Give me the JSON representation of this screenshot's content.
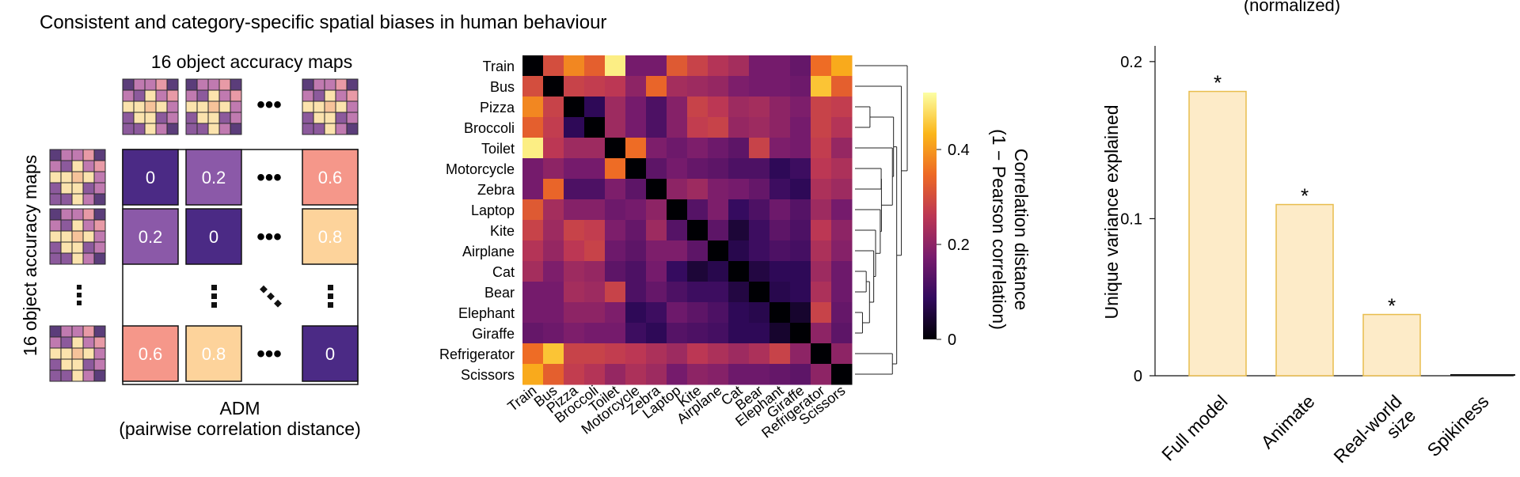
{
  "figure": {
    "title": "Consistent and category-specific spatial biases in human behaviour",
    "top_right_fragment": "(normalized)"
  },
  "panel_a": {
    "top_label": "16 object accuracy maps",
    "left_label": "16 object accuracy maps",
    "xlabel_line1": "ADM",
    "xlabel_line2": "(pairwise correlation distance)",
    "cells": [
      {
        "row": 0,
        "col": 0,
        "label": "0",
        "color": "#4b2a85"
      },
      {
        "row": 0,
        "col": 1,
        "label": "0.2",
        "color": "#8b59a8"
      },
      {
        "row": 0,
        "col": 3,
        "label": "0.6",
        "color": "#f5978a"
      },
      {
        "row": 1,
        "col": 0,
        "label": "0.2",
        "color": "#8b59a8"
      },
      {
        "row": 1,
        "col": 1,
        "label": "0",
        "color": "#4b2a85"
      },
      {
        "row": 1,
        "col": 3,
        "label": "0.8",
        "color": "#fdd39b"
      },
      {
        "row": 3,
        "col": 0,
        "label": "0.6",
        "color": "#f5978a"
      },
      {
        "row": 3,
        "col": 1,
        "label": "0.8",
        "color": "#fdd39b"
      },
      {
        "row": 3,
        "col": 3,
        "label": "0",
        "color": "#4b2a85"
      }
    ]
  },
  "chart_data": [
    {
      "type": "heatmap",
      "title": "",
      "categories": [
        "Train",
        "Bus",
        "Pizza",
        "Broccoli",
        "Toilet",
        "Motorcycle",
        "Zebra",
        "Laptop",
        "Kite",
        "Airplane",
        "Cat",
        "Bear",
        "Elephant",
        "Giraffe",
        "Refrigerator",
        "Scissors"
      ],
      "values": [
        [
          0.0,
          0.3,
          0.38,
          0.33,
          0.5,
          0.17,
          0.17,
          0.32,
          0.28,
          0.25,
          0.23,
          0.17,
          0.17,
          0.15,
          0.35,
          0.42
        ],
        [
          0.3,
          0.0,
          0.28,
          0.27,
          0.26,
          0.2,
          0.34,
          0.23,
          0.22,
          0.21,
          0.18,
          0.17,
          0.17,
          0.16,
          0.45,
          0.33
        ],
        [
          0.38,
          0.28,
          0.0,
          0.08,
          0.22,
          0.17,
          0.12,
          0.19,
          0.28,
          0.26,
          0.22,
          0.23,
          0.2,
          0.18,
          0.28,
          0.27
        ],
        [
          0.33,
          0.27,
          0.08,
          0.0,
          0.22,
          0.17,
          0.12,
          0.19,
          0.27,
          0.28,
          0.21,
          0.22,
          0.2,
          0.17,
          0.28,
          0.25
        ],
        [
          0.5,
          0.26,
          0.22,
          0.22,
          0.0,
          0.35,
          0.18,
          0.16,
          0.18,
          0.16,
          0.14,
          0.28,
          0.18,
          0.17,
          0.27,
          0.21
        ],
        [
          0.17,
          0.2,
          0.17,
          0.17,
          0.35,
          0.0,
          0.14,
          0.17,
          0.15,
          0.14,
          0.12,
          0.12,
          0.08,
          0.1,
          0.26,
          0.24
        ],
        [
          0.17,
          0.34,
          0.12,
          0.12,
          0.18,
          0.14,
          0.0,
          0.2,
          0.22,
          0.18,
          0.17,
          0.15,
          0.1,
          0.08,
          0.24,
          0.22
        ],
        [
          0.32,
          0.23,
          0.19,
          0.19,
          0.16,
          0.17,
          0.2,
          0.0,
          0.13,
          0.18,
          0.09,
          0.12,
          0.16,
          0.13,
          0.22,
          0.17
        ],
        [
          0.28,
          0.22,
          0.28,
          0.27,
          0.18,
          0.15,
          0.22,
          0.13,
          0.0,
          0.14,
          0.05,
          0.1,
          0.14,
          0.12,
          0.26,
          0.2
        ],
        [
          0.25,
          0.21,
          0.26,
          0.28,
          0.16,
          0.14,
          0.18,
          0.18,
          0.14,
          0.0,
          0.07,
          0.1,
          0.12,
          0.11,
          0.24,
          0.19
        ],
        [
          0.23,
          0.18,
          0.22,
          0.21,
          0.14,
          0.12,
          0.17,
          0.09,
          0.05,
          0.07,
          0.0,
          0.06,
          0.08,
          0.08,
          0.22,
          0.16
        ],
        [
          0.17,
          0.17,
          0.23,
          0.22,
          0.28,
          0.12,
          0.15,
          0.12,
          0.1,
          0.1,
          0.06,
          0.0,
          0.07,
          0.08,
          0.24,
          0.16
        ],
        [
          0.17,
          0.17,
          0.2,
          0.2,
          0.18,
          0.08,
          0.1,
          0.16,
          0.14,
          0.12,
          0.08,
          0.07,
          0.0,
          0.04,
          0.28,
          0.15
        ],
        [
          0.15,
          0.16,
          0.18,
          0.17,
          0.17,
          0.1,
          0.08,
          0.13,
          0.12,
          0.11,
          0.08,
          0.08,
          0.04,
          0.0,
          0.2,
          0.14
        ],
        [
          0.35,
          0.45,
          0.28,
          0.28,
          0.27,
          0.26,
          0.24,
          0.22,
          0.26,
          0.24,
          0.22,
          0.24,
          0.28,
          0.2,
          0.0,
          0.2
        ],
        [
          0.42,
          0.33,
          0.27,
          0.25,
          0.21,
          0.24,
          0.22,
          0.17,
          0.2,
          0.19,
          0.16,
          0.16,
          0.15,
          0.14,
          0.2,
          0.0
        ]
      ],
      "colorbar": {
        "label_line1": "Correlation distance",
        "label_line2": "(1 − Pearson correlation)",
        "ticks": [
          "0",
          "0.2",
          "0.4"
        ],
        "range": [
          0,
          0.52
        ],
        "colormap": [
          "#000004",
          "#320a5e",
          "#781c6d",
          "#bc3754",
          "#ed6925",
          "#fbb61a",
          "#fcffa4"
        ]
      },
      "dendrogram": true
    },
    {
      "type": "bar",
      "title": "",
      "categories": [
        "Full model",
        "Animate",
        "Real-world size",
        "Spikiness"
      ],
      "category_lines": [
        [
          "Full model"
        ],
        [
          "Animate"
        ],
        [
          "Real-world",
          "size"
        ],
        [
          "Spikiness"
        ]
      ],
      "values": [
        0.181,
        0.109,
        0.039,
        0.001
      ],
      "significant": [
        true,
        true,
        true,
        false
      ],
      "significance_marker": "*",
      "ylabel": "Unique variance explained",
      "ylim": [
        0,
        0.21
      ],
      "yticks": [
        "0",
        "0.1",
        "0.2"
      ],
      "bar_color": "#fdebc8",
      "edge_color": "#e8bd4e"
    }
  ]
}
